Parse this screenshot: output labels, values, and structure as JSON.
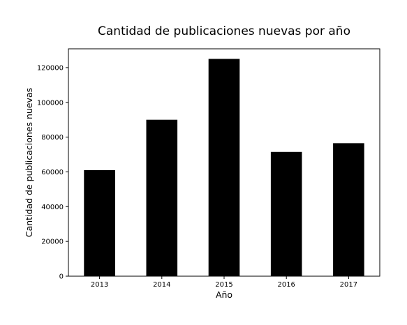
{
  "chart_data": {
    "type": "bar",
    "title": "Cantidad de publicaciones nuevas por año",
    "xlabel": "Año",
    "ylabel": "Cantidad de publicaciones nuevas",
    "categories": [
      "2013",
      "2014",
      "2015",
      "2016",
      "2017"
    ],
    "values": [
      61000,
      90000,
      125000,
      71500,
      76500
    ],
    "ylim": [
      0,
      130800
    ],
    "yticks": [
      0,
      20000,
      40000,
      60000,
      80000,
      100000,
      120000
    ],
    "ytick_labels": [
      "0",
      "20000",
      "40000",
      "60000",
      "80000",
      "100000",
      "120000"
    ],
    "bar_color": "#000000",
    "grid": false,
    "legend": "none"
  }
}
